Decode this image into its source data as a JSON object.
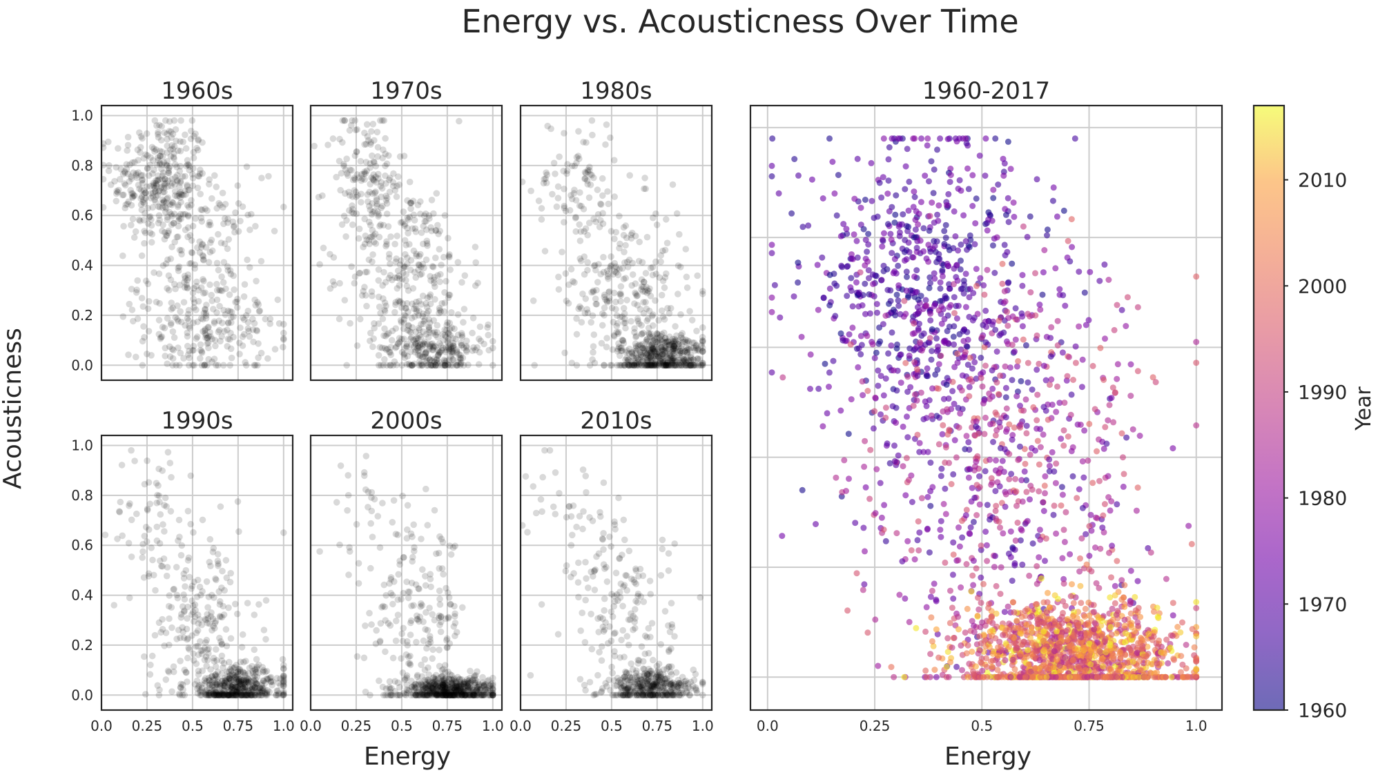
{
  "figure_title": "Energy vs. Acousticness Over Time",
  "shared_ylabel": "Acousticness",
  "shared_xlabel": "Energy",
  "colors": {
    "points_small": "#000000",
    "frame": "#262626",
    "grid": "#cccccc",
    "colormap": "plasma"
  },
  "chart_data": [
    {
      "type": "scatter",
      "title": "1960s",
      "xlim": [
        0,
        1.05
      ],
      "ylim": [
        -0.06,
        1.04
      ],
      "xticks": [
        0,
        0.25,
        0.5,
        0.75,
        1
      ],
      "yticks": [
        0,
        0.2,
        0.4,
        0.6,
        0.8,
        1
      ],
      "xtick_labels": [],
      "ytick_labels": [
        "0.0",
        "0.2",
        "0.4",
        "0.6",
        "0.8",
        "1.0"
      ],
      "grid": true,
      "point_color": "#000000",
      "alpha": 0.15,
      "distribution": "approx. 700 songs; many high-acousticness points at low energy (0.05–0.45, acousticness 0.6–0.95), broad spread elsewhere",
      "clusters": [
        {
          "n": 320,
          "x_mean": 0.32,
          "x_sd": 0.13,
          "y_mean": 0.74,
          "y_sd": 0.13
        },
        {
          "n": 230,
          "x_mean": 0.55,
          "x_sd": 0.17,
          "y_mean": 0.38,
          "y_sd": 0.19
        },
        {
          "n": 150,
          "x_mean": 0.6,
          "x_sd": 0.18,
          "y_mean": 0.12,
          "y_sd": 0.09
        }
      ]
    },
    {
      "type": "scatter",
      "title": "1970s",
      "xlim": [
        0,
        1.05
      ],
      "ylim": [
        -0.06,
        1.04
      ],
      "xticks": [
        0,
        0.25,
        0.5,
        0.75,
        1
      ],
      "yticks": [
        0,
        0.2,
        0.4,
        0.6,
        0.8,
        1
      ],
      "xtick_labels": [],
      "ytick_labels": [],
      "grid": true,
      "point_color": "#000000",
      "alpha": 0.15,
      "clusters": [
        {
          "n": 160,
          "x_mean": 0.3,
          "x_sd": 0.11,
          "y_mean": 0.74,
          "y_sd": 0.14
        },
        {
          "n": 280,
          "x_mean": 0.55,
          "x_sd": 0.16,
          "y_mean": 0.36,
          "y_sd": 0.18
        },
        {
          "n": 260,
          "x_mean": 0.68,
          "x_sd": 0.15,
          "y_mean": 0.07,
          "y_sd": 0.06
        }
      ]
    },
    {
      "type": "scatter",
      "title": "1980s",
      "xlim": [
        0,
        1.05
      ],
      "ylim": [
        -0.06,
        1.04
      ],
      "xticks": [
        0,
        0.25,
        0.5,
        0.75,
        1
      ],
      "yticks": [
        0,
        0.2,
        0.4,
        0.6,
        0.8,
        1
      ],
      "xtick_labels": [],
      "ytick_labels": [],
      "grid": true,
      "point_color": "#000000",
      "alpha": 0.15,
      "clusters": [
        {
          "n": 90,
          "x_mean": 0.3,
          "x_sd": 0.12,
          "y_mean": 0.72,
          "y_sd": 0.15
        },
        {
          "n": 260,
          "x_mean": 0.58,
          "x_sd": 0.17,
          "y_mean": 0.3,
          "y_sd": 0.17
        },
        {
          "n": 420,
          "x_mean": 0.78,
          "x_sd": 0.12,
          "y_mean": 0.04,
          "y_sd": 0.05
        }
      ]
    },
    {
      "type": "scatter",
      "title": "1990s",
      "xlim": [
        0,
        1.05
      ],
      "ylim": [
        -0.06,
        1.04
      ],
      "xticks": [
        0,
        0.25,
        0.5,
        0.75,
        1
      ],
      "yticks": [
        0,
        0.2,
        0.4,
        0.6,
        0.8,
        1
      ],
      "xtick_labels": [
        "0.0",
        "0.25",
        "0.5",
        "0.75",
        "1.0"
      ],
      "ytick_labels": [
        "0.0",
        "0.2",
        "0.4",
        "0.6",
        "0.8",
        "1.0"
      ],
      "grid": true,
      "point_color": "#000000",
      "alpha": 0.15,
      "clusters": [
        {
          "n": 70,
          "x_mean": 0.3,
          "x_sd": 0.12,
          "y_mean": 0.7,
          "y_sd": 0.15
        },
        {
          "n": 200,
          "x_mean": 0.55,
          "x_sd": 0.15,
          "y_mean": 0.28,
          "y_sd": 0.17
        },
        {
          "n": 430,
          "x_mean": 0.74,
          "x_sd": 0.14,
          "y_mean": 0.03,
          "y_sd": 0.04
        }
      ]
    },
    {
      "type": "scatter",
      "title": "2000s",
      "xlim": [
        0,
        1.05
      ],
      "ylim": [
        -0.06,
        1.04
      ],
      "xticks": [
        0,
        0.25,
        0.5,
        0.75,
        1
      ],
      "yticks": [
        0,
        0.2,
        0.4,
        0.6,
        0.8,
        1
      ],
      "xtick_labels": [
        "0.0",
        "0.25",
        "0.5",
        "0.75",
        "1.0"
      ],
      "ytick_labels": [],
      "grid": true,
      "point_color": "#000000",
      "alpha": 0.15,
      "clusters": [
        {
          "n": 30,
          "x_mean": 0.35,
          "x_sd": 0.12,
          "y_mean": 0.72,
          "y_sd": 0.14
        },
        {
          "n": 170,
          "x_mean": 0.58,
          "x_sd": 0.14,
          "y_mean": 0.32,
          "y_sd": 0.17
        },
        {
          "n": 520,
          "x_mean": 0.76,
          "x_sd": 0.13,
          "y_mean": 0.02,
          "y_sd": 0.03
        }
      ]
    },
    {
      "type": "scatter",
      "title": "2010s",
      "xlim": [
        0,
        1.05
      ],
      "ylim": [
        -0.06,
        1.04
      ],
      "xticks": [
        0,
        0.25,
        0.5,
        0.75,
        1
      ],
      "yticks": [
        0,
        0.2,
        0.4,
        0.6,
        0.8,
        1
      ],
      "xtick_labels": [
        "0.0",
        "0.25",
        "0.5",
        "0.75",
        "1.0"
      ],
      "ytick_labels": [],
      "grid": true,
      "point_color": "#000000",
      "alpha": 0.15,
      "clusters": [
        {
          "n": 40,
          "x_mean": 0.3,
          "x_sd": 0.13,
          "y_mean": 0.75,
          "y_sd": 0.14
        },
        {
          "n": 150,
          "x_mean": 0.56,
          "x_sd": 0.14,
          "y_mean": 0.33,
          "y_sd": 0.17
        },
        {
          "n": 350,
          "x_mean": 0.72,
          "x_sd": 0.12,
          "y_mean": 0.03,
          "y_sd": 0.04
        }
      ]
    },
    {
      "type": "scatter",
      "title": "1960-2017",
      "xlim": [
        -0.04,
        1.06
      ],
      "ylim": [
        -0.06,
        1.04
      ],
      "xticks": [
        0,
        0.25,
        0.5,
        0.75,
        1
      ],
      "yticks": [
        0,
        0.2,
        0.4,
        0.6,
        0.8,
        1
      ],
      "xtick_labels": [
        "0.0",
        "0.25",
        "0.5",
        "0.75",
        "1.0"
      ],
      "ytick_labels": [],
      "grid": true,
      "colormap": "plasma",
      "alpha": 0.6,
      "color_by": "Year",
      "year_range": [
        1960,
        2017
      ],
      "colorbar": {
        "label": "Year",
        "ticks": [
          1960,
          1970,
          1980,
          1990,
          2000,
          2010
        ],
        "tick_labels": [
          "1960",
          "1970",
          "1980",
          "1990",
          "2000",
          "2010"
        ],
        "range": [
          1960,
          2017
        ]
      },
      "clusters": [
        {
          "n": 650,
          "x_mean": 0.36,
          "x_sd": 0.14,
          "y_mean": 0.72,
          "y_sd": 0.15,
          "year_range": [
            1960,
            1978
          ]
        },
        {
          "n": 700,
          "x_mean": 0.55,
          "x_sd": 0.17,
          "y_mean": 0.38,
          "y_sd": 0.19,
          "year_range": [
            1965,
            1998
          ]
        },
        {
          "n": 1400,
          "x_mean": 0.72,
          "x_sd": 0.13,
          "y_mean": 0.04,
          "y_sd": 0.05,
          "year_range": [
            1985,
            2017
          ]
        }
      ]
    }
  ]
}
